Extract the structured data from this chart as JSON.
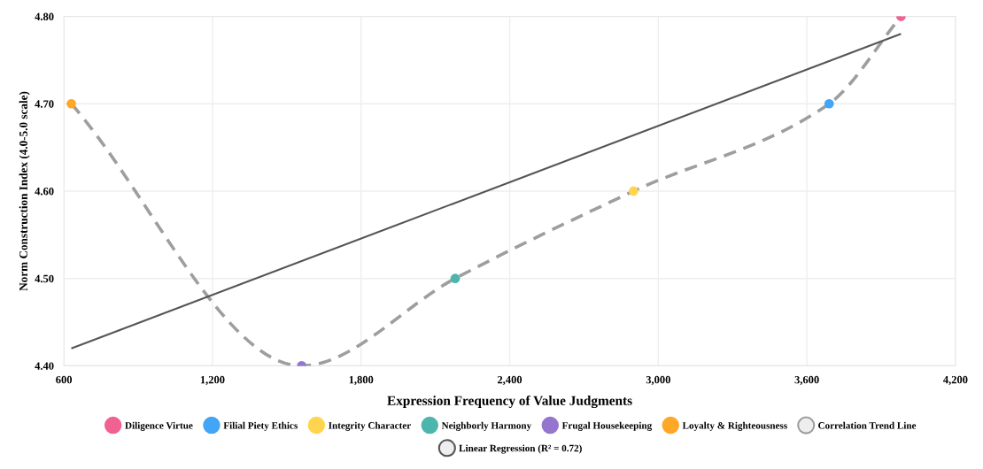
{
  "chart_data": {
    "type": "scatter",
    "xlabel": "Expression Frequency of Value Judgments",
    "ylabel": "Norm Construction Index (4.0-5.0 scale)",
    "xlim": [
      600,
      4200
    ],
    "ylim": [
      4.4,
      4.8
    ],
    "xticks": [
      {
        "value": 600,
        "label": "600"
      },
      {
        "value": 1200,
        "label": "1,200"
      },
      {
        "value": 1800,
        "label": "1,800"
      },
      {
        "value": 2400,
        "label": "2,400"
      },
      {
        "value": 3000,
        "label": "3,000"
      },
      {
        "value": 3600,
        "label": "3,600"
      },
      {
        "value": 4200,
        "label": "4,200"
      }
    ],
    "yticks": [
      {
        "value": 4.4,
        "label": "4.40"
      },
      {
        "value": 4.5,
        "label": "4.50"
      },
      {
        "value": 4.6,
        "label": "4.60"
      },
      {
        "value": 4.7,
        "label": "4.70"
      },
      {
        "value": 4.8,
        "label": "4.80"
      }
    ],
    "grid": true,
    "legend": "bottom",
    "marker": "circle",
    "series": [
      {
        "name": "Diligence Virtue",
        "color": "#f06292",
        "x": [
          3980
        ],
        "values": [
          4.8
        ]
      },
      {
        "name": "Filial Piety Ethics",
        "color": "#42a5f5",
        "x": [
          3690
        ],
        "values": [
          4.7
        ]
      },
      {
        "name": "Integrity Character",
        "color": "#ffd54f",
        "x": [
          2900
        ],
        "values": [
          4.6
        ]
      },
      {
        "name": "Neighborly Harmony",
        "color": "#4db6ac",
        "x": [
          2180
        ],
        "values": [
          4.5
        ]
      },
      {
        "name": "Frugal Housekeeping",
        "color": "#9575cd",
        "x": [
          1560
        ],
        "values": [
          4.4
        ]
      },
      {
        "name": "Loyalty & Righteousness",
        "color": "#ffa726",
        "x": [
          630
        ],
        "values": [
          4.7
        ]
      },
      {
        "name": "Correlation Trend Line",
        "type": "line",
        "color": "#9e9e9e",
        "line_style": "dashed",
        "marker": "none",
        "x": [
          630,
          1560,
          2180,
          2900,
          3690,
          3980
        ],
        "values": [
          4.7,
          4.4,
          4.5,
          4.6,
          4.7,
          4.8
        ]
      },
      {
        "name": "Linear Regression (R² = 0.72)",
        "type": "line",
        "color": "#555555",
        "line_style": "solid",
        "marker": "none",
        "x": [
          630,
          3980
        ],
        "values": [
          4.42,
          4.78
        ]
      }
    ]
  }
}
